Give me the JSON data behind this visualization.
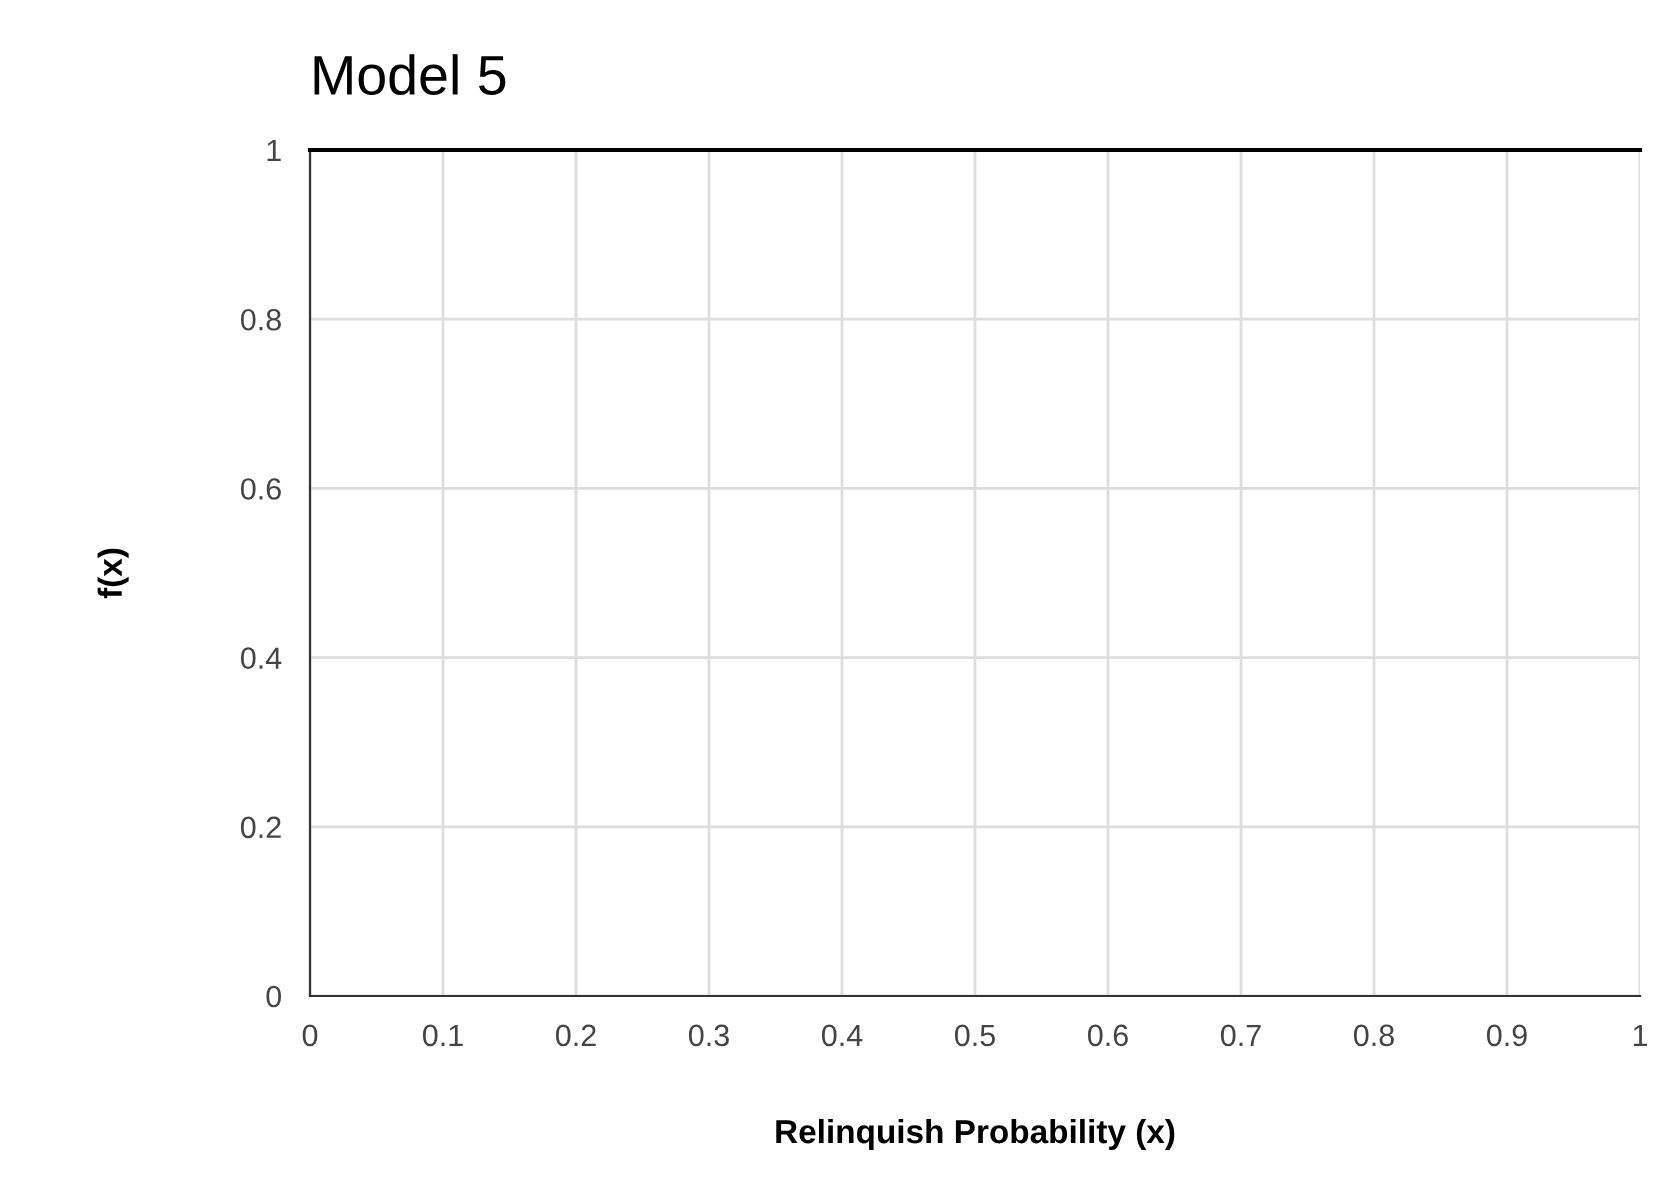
{
  "chart_data": {
    "type": "line",
    "title": "Model 5",
    "xlabel": "Relinquish Probability (x)",
    "ylabel": "f(x)",
    "x": [
      0,
      1
    ],
    "series": [
      {
        "color": "#000000",
        "values": [
          1,
          1
        ]
      }
    ],
    "xlim": [
      0,
      1
    ],
    "xticks": [
      0,
      0.1,
      0.2,
      0.3,
      0.4,
      0.5,
      0.6,
      0.7,
      0.8,
      0.9,
      1
    ],
    "ylim": [
      0,
      1
    ],
    "yticks": [
      0,
      0.2,
      0.4,
      0.6,
      0.8,
      1
    ],
    "grid": true,
    "marker": "none",
    "line_style": "solid"
  }
}
